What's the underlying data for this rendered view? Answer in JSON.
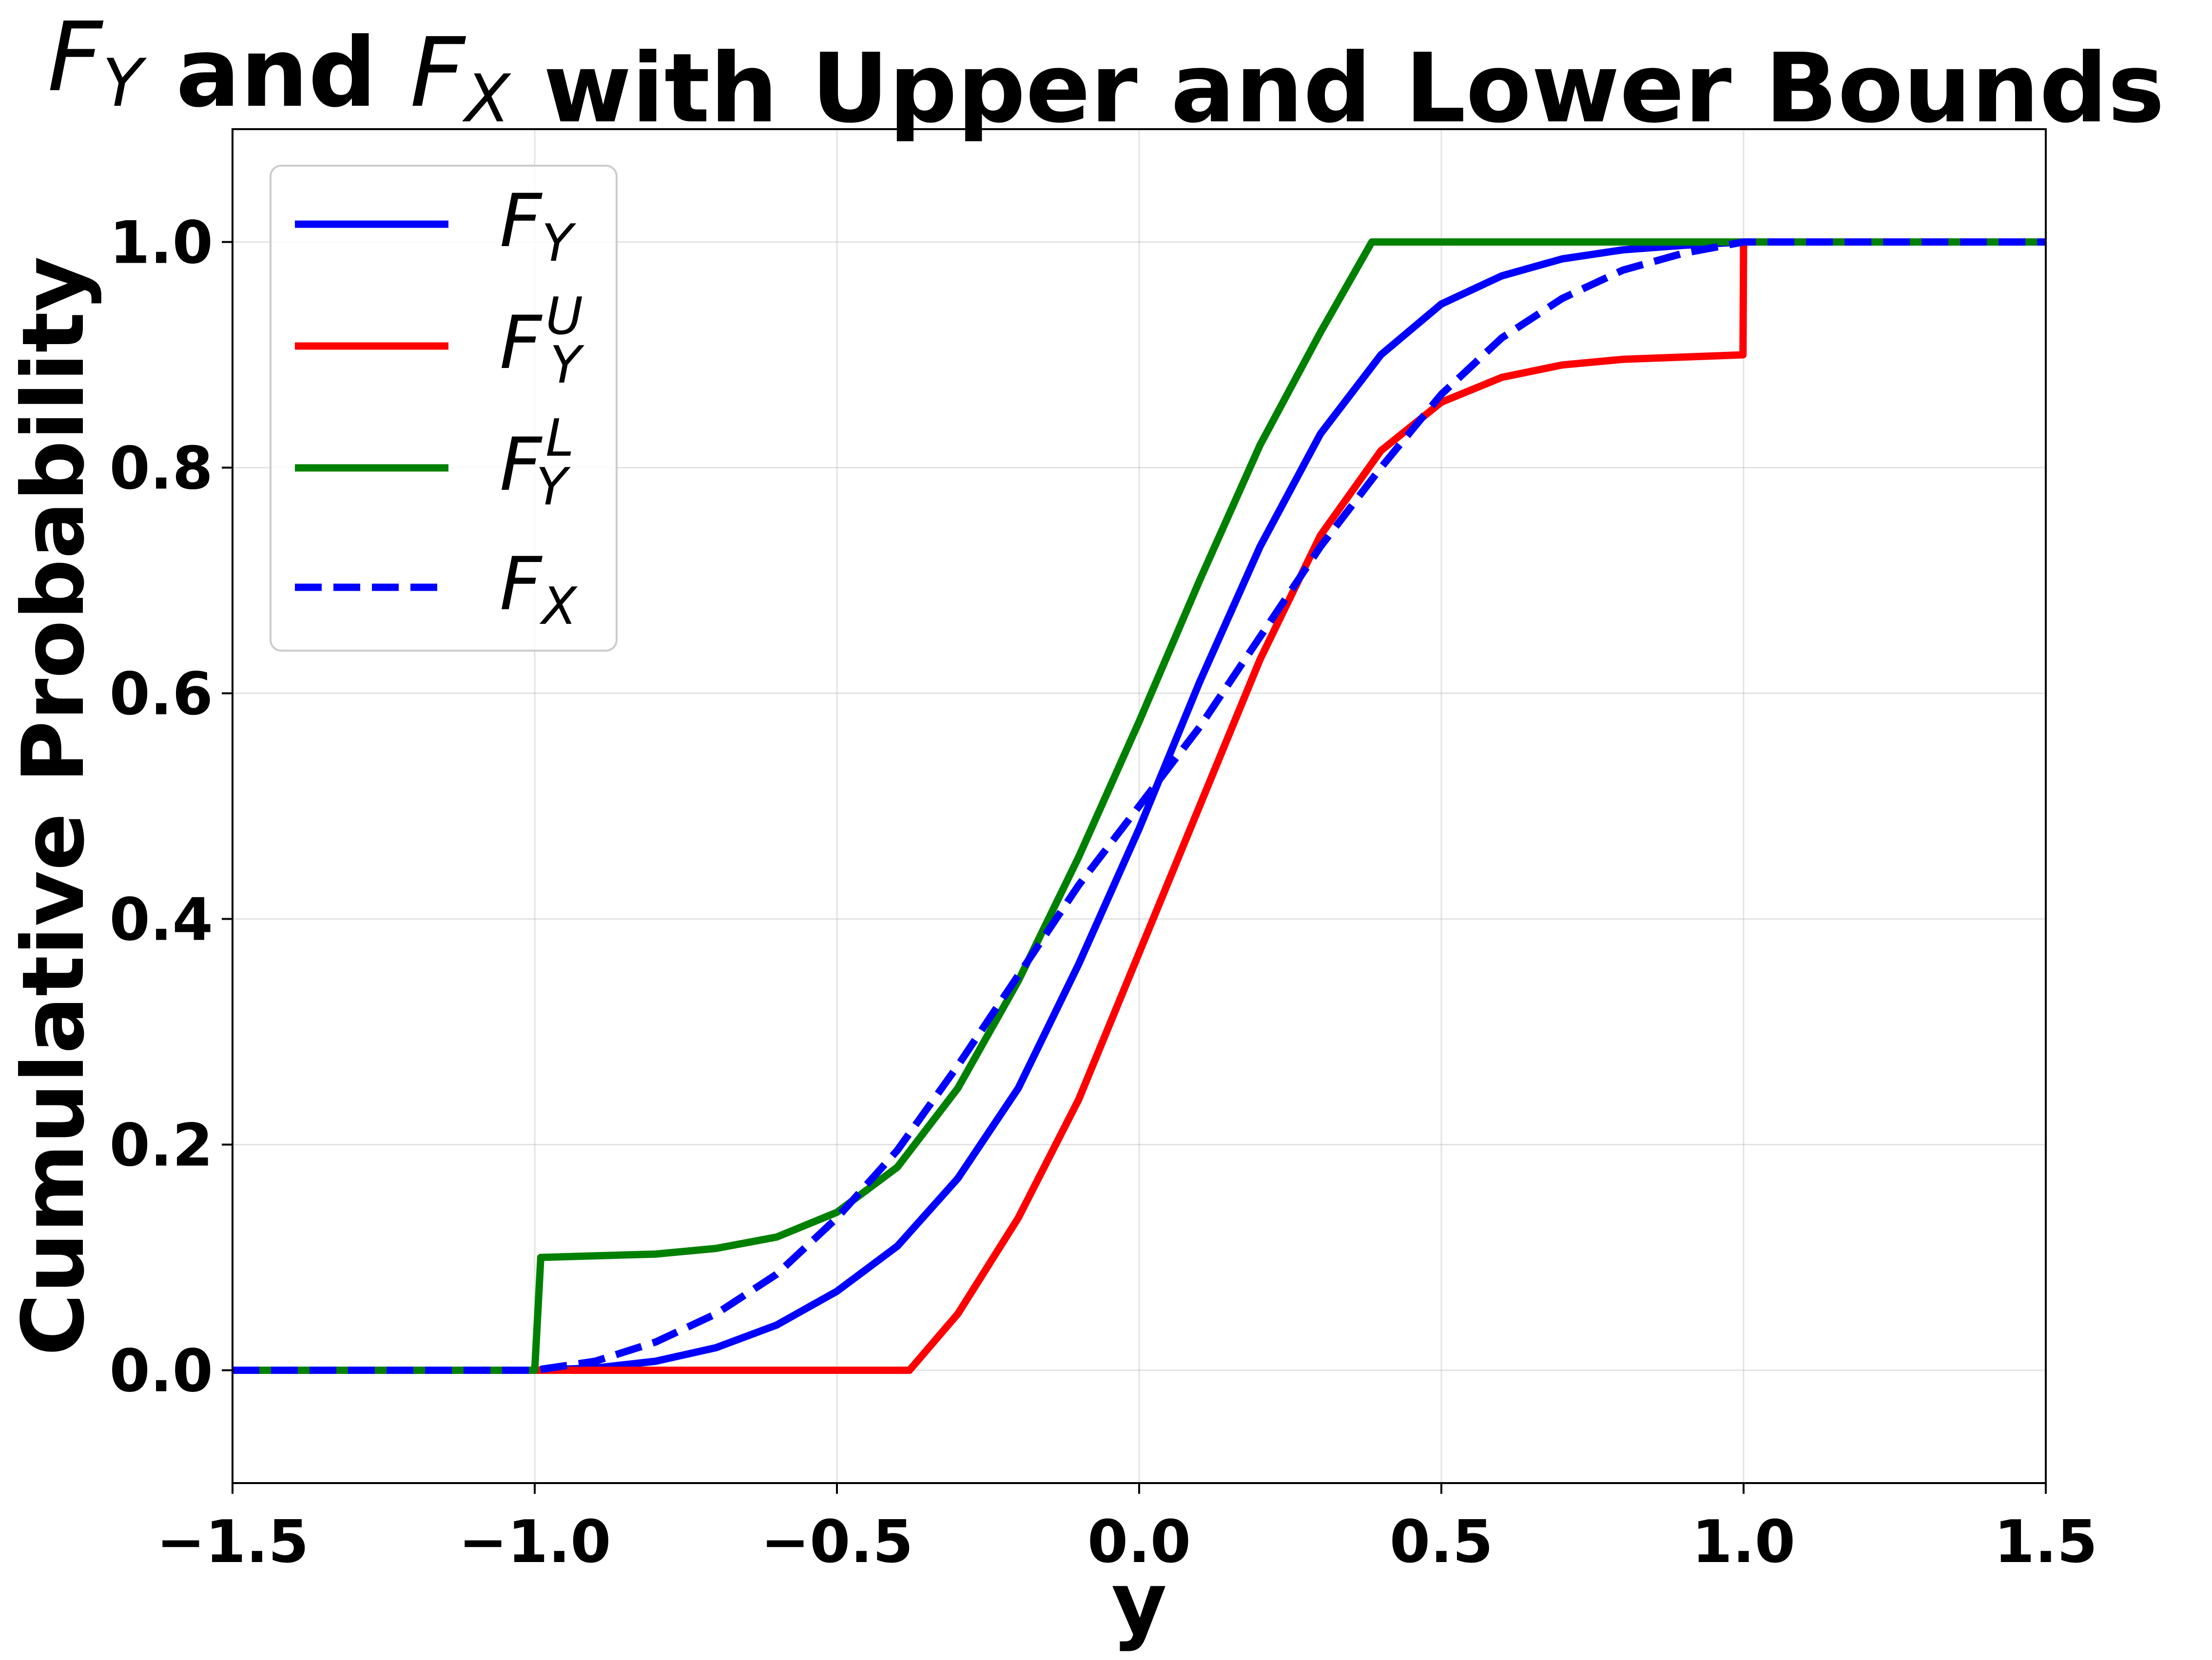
{
  "chart_data": {
    "type": "line",
    "title": {
      "parts": [
        {
          "sym": "F",
          "sub": "Y"
        },
        {
          "text": " and "
        },
        {
          "sym": "F",
          "sub": "X"
        },
        {
          "text": " with Upper and Lower Bounds"
        }
      ]
    },
    "xlabel": "y",
    "ylabel": "Cumulative Probability",
    "xlim": [
      -1.5,
      1.5
    ],
    "ylim": [
      -0.1,
      1.1
    ],
    "xticks": [
      -1.5,
      -1.0,
      -0.5,
      0.0,
      0.5,
      1.0,
      1.5
    ],
    "xtick_labels": [
      "−1.5",
      "−1.0",
      "−0.5",
      "0.0",
      "0.5",
      "1.0",
      "1.5"
    ],
    "yticks": [
      0.0,
      0.2,
      0.4,
      0.6,
      0.8,
      1.0
    ],
    "ytick_labels": [
      "0.0",
      "0.2",
      "0.4",
      "0.6",
      "0.8",
      "1.0"
    ],
    "grid": true,
    "legend_position": "upper-left",
    "series": [
      {
        "name": "F_Y",
        "legend": {
          "base": "F",
          "sub": "Y",
          "sup": ""
        },
        "color": "#0000ff",
        "style": "solid",
        "x": [
          -1.5,
          -1.0,
          -0.9,
          -0.8,
          -0.7,
          -0.6,
          -0.5,
          -0.4,
          -0.3,
          -0.2,
          -0.1,
          0.0,
          0.1,
          0.2,
          0.3,
          0.4,
          0.5,
          0.6,
          0.7,
          0.8,
          0.9,
          1.0,
          1.5
        ],
        "y": [
          0.0,
          0.0,
          0.002,
          0.008,
          0.02,
          0.04,
          0.07,
          0.11,
          0.17,
          0.25,
          0.36,
          0.48,
          0.61,
          0.73,
          0.83,
          0.9,
          0.945,
          0.97,
          0.985,
          0.993,
          0.997,
          1.0,
          1.0
        ]
      },
      {
        "name": "F_Y^U",
        "legend": {
          "base": "F",
          "sub": "Y",
          "sup": "U"
        },
        "color": "#ff0000",
        "style": "solid",
        "x": [
          -1.5,
          -0.38,
          -0.3,
          -0.2,
          -0.1,
          0.0,
          0.1,
          0.2,
          0.3,
          0.4,
          0.5,
          0.6,
          0.7,
          0.8,
          0.9,
          0.999,
          1.0,
          1.5
        ],
        "y": [
          0.0,
          0.0,
          0.05,
          0.135,
          0.24,
          0.37,
          0.5,
          0.63,
          0.74,
          0.815,
          0.858,
          0.88,
          0.891,
          0.896,
          0.898,
          0.9,
          1.0,
          1.0
        ]
      },
      {
        "name": "F_Y^L",
        "legend": {
          "base": "F",
          "sub": "Y",
          "sup": "L"
        },
        "color": "#008000",
        "style": "solid",
        "x": [
          -1.5,
          -1.0,
          -0.99,
          -0.8,
          -0.7,
          -0.6,
          -0.5,
          -0.4,
          -0.3,
          -0.2,
          -0.1,
          0.0,
          0.1,
          0.2,
          0.3,
          0.385,
          1.5
        ],
        "y": [
          0.0,
          0.0,
          0.1,
          0.103,
          0.108,
          0.118,
          0.14,
          0.18,
          0.25,
          0.345,
          0.455,
          0.575,
          0.7,
          0.82,
          0.92,
          1.0,
          1.0
        ]
      },
      {
        "name": "F_X",
        "legend": {
          "base": "F",
          "sub": "X",
          "sup": ""
        },
        "color": "#0000ff",
        "style": "dashed",
        "x": [
          -1.5,
          -1.0,
          -0.9,
          -0.8,
          -0.7,
          -0.6,
          -0.5,
          -0.4,
          -0.3,
          -0.2,
          -0.1,
          0.0,
          0.1,
          0.2,
          0.3,
          0.4,
          0.5,
          0.6,
          0.7,
          0.8,
          0.9,
          1.0,
          1.5
        ],
        "y": [
          0.0,
          0.0,
          0.008,
          0.025,
          0.05,
          0.085,
          0.135,
          0.195,
          0.27,
          0.35,
          0.43,
          0.5,
          0.57,
          0.65,
          0.73,
          0.8,
          0.865,
          0.915,
          0.95,
          0.975,
          0.99,
          1.0,
          1.0
        ]
      }
    ]
  }
}
